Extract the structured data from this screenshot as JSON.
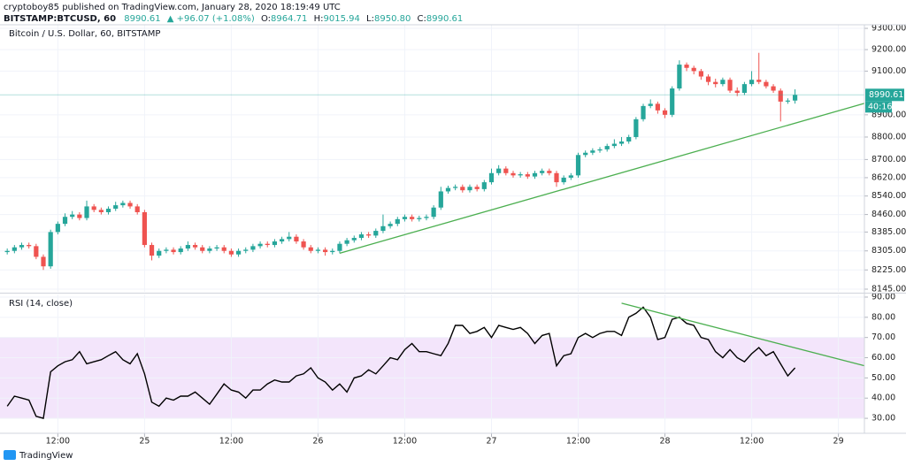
{
  "header": {
    "author_line": "cryptoboy85 published on TradingView.com, January 28, 2020 18:19:49 UTC",
    "symbol": "BITSTAMP:BTCUSD, 60",
    "price": "8990.61",
    "change": "▲ +96.07 (+1.08%)",
    "ohlc": [
      {
        "label": "O:",
        "value": "8964.71"
      },
      {
        "label": "H:",
        "value": "9015.94"
      },
      {
        "label": "L:",
        "value": "8950.80"
      },
      {
        "label": "C:",
        "value": "8990.61"
      }
    ]
  },
  "chart_data": [
    {
      "type": "candlestick",
      "title": "Bitcoin / U.S. Dollar, 60, BITSTAMP",
      "log_scale": true,
      "grid": true,
      "up_color": "#26a69a",
      "down_color": "#ef5350",
      "xlim": [
        -1,
        118.6
      ],
      "ylim": [
        8134,
        9317
      ],
      "yticks": [
        {
          "value": 9300,
          "label": "9300.00"
        },
        {
          "value": 9200,
          "label": "9200.00"
        },
        {
          "value": 9100,
          "label": "9100.00"
        },
        {
          "value": 8900,
          "label": "8900.00"
        },
        {
          "value": 8800,
          "label": "8800.00"
        },
        {
          "value": 8700,
          "label": "8700.00"
        },
        {
          "value": 8620,
          "label": "8620.00"
        },
        {
          "value": 8540,
          "label": "8540.00"
        },
        {
          "value": 8460,
          "label": "8460.00"
        },
        {
          "value": 8385,
          "label": "8385.00"
        },
        {
          "value": 8305,
          "label": "8305.00"
        },
        {
          "value": 8225,
          "label": "8225.00"
        },
        {
          "value": 8145,
          "label": "8145.00"
        }
      ],
      "open": [
        8300,
        8305,
        8320,
        8330,
        8325,
        8280,
        8240,
        8385,
        8420,
        8450,
        8460,
        8445,
        8495,
        8480,
        8470,
        8485,
        8500,
        8510,
        8495,
        8470,
        8330,
        8285,
        8305,
        8310,
        8300,
        8315,
        8330,
        8320,
        8305,
        8315,
        8320,
        8305,
        8290,
        8305,
        8310,
        8325,
        8335,
        8330,
        8345,
        8355,
        8365,
        8345,
        8320,
        8305,
        8310,
        8300,
        8305,
        8335,
        8350,
        8360,
        8375,
        8370,
        8390,
        8410,
        8420,
        8440,
        8450,
        8440,
        8445,
        8450,
        8490,
        8560,
        8575,
        8580,
        8565,
        8580,
        8570,
        8600,
        8640,
        8660,
        8640,
        8630,
        8635,
        8625,
        8640,
        8650,
        8640,
        8600,
        8620,
        8630,
        8720,
        8730,
        8740,
        8745,
        8760,
        8770,
        8780,
        8800,
        8880,
        8940,
        8950,
        8920,
        8900,
        9020,
        9130,
        9115,
        9100,
        9075,
        9050,
        9040,
        9060,
        9010,
        9000,
        9040,
        9060,
        9050,
        9030,
        9010,
        8960,
        8964.71
      ],
      "high": [
        8315,
        8330,
        8340,
        8340,
        8335,
        8290,
        8395,
        8430,
        8465,
        8475,
        8470,
        8520,
        8505,
        8490,
        8495,
        8515,
        8520,
        8520,
        8505,
        8480,
        8340,
        8315,
        8320,
        8320,
        8325,
        8345,
        8340,
        8330,
        8325,
        8330,
        8330,
        8315,
        8315,
        8320,
        8335,
        8345,
        8345,
        8355,
        8365,
        8385,
        8375,
        8355,
        8330,
        8320,
        8320,
        8315,
        8345,
        8360,
        8370,
        8385,
        8385,
        8400,
        8460,
        8430,
        8450,
        8460,
        8460,
        8455,
        8460,
        8500,
        8580,
        8585,
        8590,
        8590,
        8590,
        8590,
        8610,
        8660,
        8675,
        8670,
        8650,
        8645,
        8645,
        8650,
        8660,
        8660,
        8650,
        8630,
        8640,
        8730,
        8740,
        8750,
        8755,
        8770,
        8790,
        8800,
        8810,
        8890,
        8950,
        8970,
        8960,
        8930,
        9030,
        9150,
        9140,
        9125,
        9110,
        9085,
        9065,
        9070,
        9070,
        9025,
        9050,
        9100,
        9185,
        9060,
        9040,
        9020,
        8975,
        9015.94
      ],
      "low": [
        8290,
        8295,
        8310,
        8315,
        8270,
        8225,
        8230,
        8375,
        8410,
        8440,
        8435,
        8435,
        8470,
        8460,
        8460,
        8475,
        8490,
        8485,
        8460,
        8320,
        8265,
        8275,
        8295,
        8290,
        8290,
        8305,
        8310,
        8295,
        8295,
        8305,
        8295,
        8280,
        8280,
        8295,
        8300,
        8315,
        8320,
        8320,
        8335,
        8345,
        8335,
        8310,
        8295,
        8295,
        8285,
        8290,
        8295,
        8325,
        8340,
        8350,
        8360,
        8360,
        8380,
        8400,
        8410,
        8430,
        8430,
        8430,
        8435,
        8440,
        8480,
        8550,
        8565,
        8555,
        8555,
        8560,
        8560,
        8590,
        8630,
        8630,
        8620,
        8620,
        8615,
        8615,
        8630,
        8630,
        8580,
        8590,
        8610,
        8620,
        8710,
        8720,
        8730,
        8735,
        8750,
        8760,
        8770,
        8790,
        8870,
        8930,
        8905,
        8885,
        8890,
        9010,
        9100,
        9085,
        9060,
        9035,
        9025,
        9030,
        9000,
        8985,
        8990,
        9030,
        9040,
        9020,
        9000,
        8870,
        8950,
        8950.8
      ],
      "close": [
        8305,
        8320,
        8330,
        8325,
        8280,
        8240,
        8385,
        8420,
        8450,
        8460,
        8445,
        8495,
        8480,
        8470,
        8485,
        8500,
        8510,
        8495,
        8470,
        8330,
        8285,
        8305,
        8310,
        8300,
        8315,
        8330,
        8320,
        8305,
        8315,
        8320,
        8305,
        8290,
        8305,
        8310,
        8325,
        8335,
        8330,
        8345,
        8355,
        8365,
        8345,
        8320,
        8305,
        8310,
        8300,
        8305,
        8335,
        8350,
        8360,
        8375,
        8370,
        8390,
        8410,
        8420,
        8440,
        8450,
        8440,
        8445,
        8450,
        8490,
        8560,
        8575,
        8580,
        8565,
        8580,
        8570,
        8600,
        8640,
        8660,
        8640,
        8630,
        8635,
        8625,
        8640,
        8650,
        8640,
        8600,
        8620,
        8630,
        8720,
        8730,
        8740,
        8745,
        8760,
        8770,
        8780,
        8800,
        8880,
        8940,
        8950,
        8920,
        8900,
        9020,
        9130,
        9115,
        9100,
        9075,
        9050,
        9040,
        9060,
        9010,
        9000,
        9040,
        9060,
        9050,
        9030,
        9010,
        8960,
        8964.71,
        8990.61
      ],
      "last_price": 8990.61,
      "countdown": "40:16",
      "last_color": "#26a69a",
      "trend_lines": [
        {
          "x": [
            46,
            118.6
          ],
          "y": [
            8295,
            8952
          ],
          "color": "#4caf50"
        }
      ]
    },
    {
      "type": "line",
      "title": "RSI (14, close)",
      "color": "#000000",
      "band": [
        30,
        70
      ],
      "band_color": "#f3e5fb",
      "grid": true,
      "xlim": [
        -1,
        118.6
      ],
      "ylim": [
        22.6,
        91.3
      ],
      "xticks": [
        {
          "value": 7,
          "label": "12:00"
        },
        {
          "value": 19,
          "label": "25"
        },
        {
          "value": 31,
          "label": "12:00"
        },
        {
          "value": 43,
          "label": "26"
        },
        {
          "value": 55,
          "label": "12:00"
        },
        {
          "value": 67,
          "label": "27"
        },
        {
          "value": 79,
          "label": "12:00"
        },
        {
          "value": 91,
          "label": "28"
        },
        {
          "value": 103,
          "label": "12:00"
        },
        {
          "value": 115,
          "label": "29"
        }
      ],
      "yticks": [
        {
          "value": 90,
          "label": "90.00"
        },
        {
          "value": 80,
          "label": "80.00"
        },
        {
          "value": 70,
          "label": "70.00"
        },
        {
          "value": 60,
          "label": "60.00"
        },
        {
          "value": 50,
          "label": "50.00"
        },
        {
          "value": 40,
          "label": "40.00"
        },
        {
          "value": 30,
          "label": "30.00"
        }
      ],
      "values": [
        36,
        41,
        40,
        39,
        31,
        30,
        53,
        56,
        58,
        59,
        63,
        57,
        58,
        59,
        61,
        63,
        59,
        57,
        62,
        52,
        38,
        36,
        40,
        39,
        41,
        41,
        43,
        40,
        37,
        42,
        47,
        44,
        43,
        40,
        44,
        44,
        47,
        49,
        48,
        48,
        51,
        52,
        55,
        50,
        48,
        44,
        47,
        43,
        50,
        51,
        54,
        52,
        56,
        60,
        59,
        64,
        67,
        63,
        63,
        62,
        61,
        67,
        76,
        76,
        72,
        73,
        75,
        70,
        76,
        75,
        74,
        75,
        72,
        67,
        71,
        72,
        56,
        61,
        62,
        70,
        72,
        70,
        72,
        73,
        73,
        71,
        80,
        82,
        85,
        80,
        69,
        70,
        79,
        80,
        77,
        76,
        70,
        69,
        63,
        60,
        64,
        60,
        58,
        62,
        65,
        61,
        63,
        57,
        51,
        55
      ],
      "trend_lines": [
        {
          "x": [
            85,
            118.6
          ],
          "y": [
            87,
            56
          ],
          "color": "#4caf50"
        }
      ]
    }
  ],
  "footer": {
    "brand": "TradingView"
  }
}
